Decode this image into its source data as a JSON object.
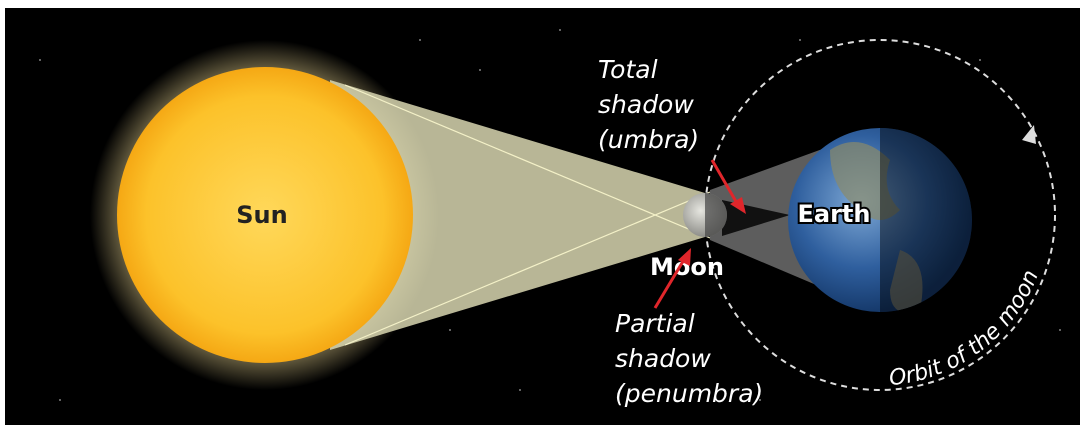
{
  "labels": {
    "sun": "Sun",
    "moon": "Moon",
    "earth": "Earth",
    "umbra": [
      "Total",
      "shadow",
      "(umbra)"
    ],
    "penumbra": [
      "Partial",
      "shadow",
      "(penumbra)"
    ],
    "orbit": "Orbit of the moon"
  }
}
